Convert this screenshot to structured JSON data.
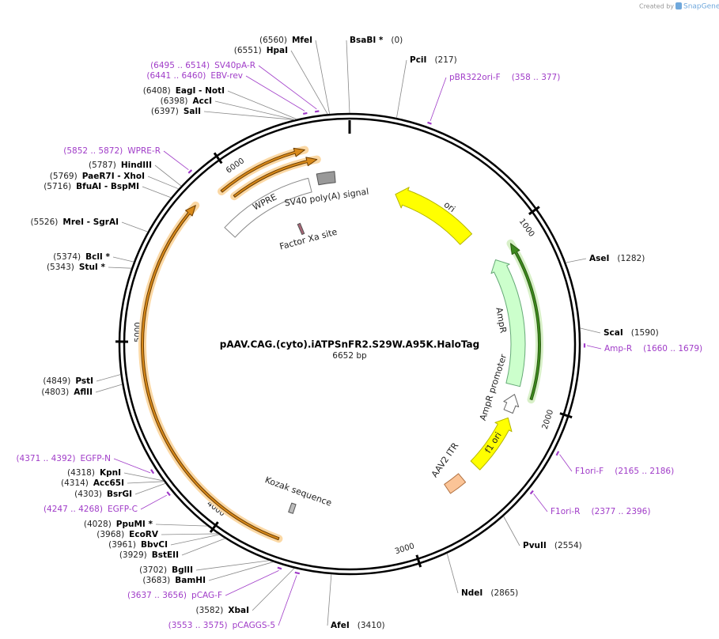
{
  "credit": {
    "prefix": "Created by",
    "brand": "SnapGene"
  },
  "map": {
    "title": "pAAV.CAG.(cyto).iATPSnFR2.S29W.A95K.HaloTag",
    "length": {
      "value": 6652,
      "label": "6652 bp"
    },
    "ticks": [
      1000,
      2000,
      3000,
      4000,
      5000,
      6000
    ]
  },
  "sites": [
    {
      "name": "MfeI",
      "position": {
        "value": 6560,
        "label": "(6560)"
      }
    },
    {
      "name": "HpaI",
      "position": {
        "value": 6551,
        "label": "(6551)"
      }
    },
    {
      "name": "EagI - NotI",
      "position": {
        "value": 6408,
        "label": "(6408)"
      }
    },
    {
      "name": "AccI",
      "position": {
        "value": 6398,
        "label": "(6398)"
      }
    },
    {
      "name": "SalI",
      "position": {
        "value": 6397,
        "label": "(6397)"
      }
    },
    {
      "name": "HindIII",
      "position": {
        "value": 5787,
        "label": "(5787)"
      }
    },
    {
      "name": "PaeR7I - XhoI",
      "position": {
        "value": 5769,
        "label": "(5769)"
      }
    },
    {
      "name": "BfuAI - BspMI",
      "position": {
        "value": 5716,
        "label": "(5716)"
      }
    },
    {
      "name": "MreI - SgrAI",
      "position": {
        "value": 5526,
        "label": "(5526)"
      }
    },
    {
      "name": "BclI *",
      "position": {
        "value": 5374,
        "label": "(5374)"
      }
    },
    {
      "name": "StuI *",
      "position": {
        "value": 5343,
        "label": "(5343)"
      }
    },
    {
      "name": "PstI",
      "position": {
        "value": 4849,
        "label": "(4849)"
      }
    },
    {
      "name": "AflII",
      "position": {
        "value": 4803,
        "label": "(4803)"
      }
    },
    {
      "name": "KpnI",
      "position": {
        "value": 4318,
        "label": "(4318)"
      }
    },
    {
      "name": "Acc65I",
      "position": {
        "value": 4314,
        "label": "(4314)"
      }
    },
    {
      "name": "BsrGI",
      "position": {
        "value": 4303,
        "label": "(4303)"
      }
    },
    {
      "name": "PpuMI *",
      "position": {
        "value": 4028,
        "label": "(4028)"
      }
    },
    {
      "name": "EcoRV",
      "position": {
        "value": 3968,
        "label": "(3968)"
      }
    },
    {
      "name": "BbvCI",
      "position": {
        "value": 3961,
        "label": "(3961)"
      }
    },
    {
      "name": "BstEII",
      "position": {
        "value": 3929,
        "label": "(3929)"
      }
    },
    {
      "name": "BglII",
      "position": {
        "value": 3702,
        "label": "(3702)"
      }
    },
    {
      "name": "BamHI",
      "position": {
        "value": 3683,
        "label": "(3683)"
      }
    },
    {
      "name": "XbaI",
      "position": {
        "value": 3582,
        "label": "(3582)"
      }
    },
    {
      "name": "BsaBI *",
      "position": {
        "value": 0,
        "label": "(0)"
      }
    },
    {
      "name": "PciI",
      "position": {
        "value": 217,
        "label": "(217)"
      }
    },
    {
      "name": "AseI",
      "position": {
        "value": 1282,
        "label": "(1282)"
      }
    },
    {
      "name": "ScaI",
      "position": {
        "value": 1590,
        "label": "(1590)"
      }
    },
    {
      "name": "PvuII",
      "position": {
        "value": 2554,
        "label": "(2554)"
      }
    },
    {
      "name": "NdeI",
      "position": {
        "value": 2865,
        "label": "(2865)"
      }
    },
    {
      "name": "AfeI",
      "position": {
        "value": 3410,
        "label": "(3410)"
      }
    }
  ],
  "primers": [
    {
      "name": "SV40pA-R",
      "range": {
        "start": 6495,
        "end": 6514,
        "label": "(6495 .. 6514)"
      }
    },
    {
      "name": "EBV-rev",
      "range": {
        "start": 6441,
        "end": 6460,
        "label": "(6441 .. 6460)"
      }
    },
    {
      "name": "pBR322ori-F",
      "range": {
        "start": 358,
        "end": 377,
        "label": "(358 .. 377)"
      }
    },
    {
      "name": "WPRE-R",
      "range": {
        "start": 5852,
        "end": 5872,
        "label": "(5852 .. 5872)"
      }
    },
    {
      "name": "Amp-R",
      "range": {
        "start": 1660,
        "end": 1679,
        "label": "(1660 .. 1679)"
      }
    },
    {
      "name": "F1ori-F",
      "range": {
        "start": 2165,
        "end": 2186,
        "label": "(2165 .. 2186)"
      }
    },
    {
      "name": "F1ori-R",
      "range": {
        "start": 2377,
        "end": 2396,
        "label": "(2377 .. 2396)"
      }
    },
    {
      "name": "EGFP-N",
      "range": {
        "start": 4371,
        "end": 4392,
        "label": "(4371 .. 4392)"
      }
    },
    {
      "name": "EGFP-C",
      "range": {
        "start": 4247,
        "end": 4268,
        "label": "(4247 .. 4268)"
      }
    },
    {
      "name": "pCAG-F",
      "range": {
        "start": 3637,
        "end": 3656,
        "label": "(3637 .. 3656)"
      }
    },
    {
      "name": "pCAGGS-5",
      "range": {
        "start": 3553,
        "end": 3575,
        "label": "(3553 .. 3575)"
      }
    }
  ],
  "features": [
    "ori",
    "AmpR",
    "AmpR promoter",
    "f1 ori",
    "AAV2 ITR",
    "Kozak sequence",
    "WPRE",
    "SV40 poly(A) signal",
    "Factor Xa site"
  ]
}
